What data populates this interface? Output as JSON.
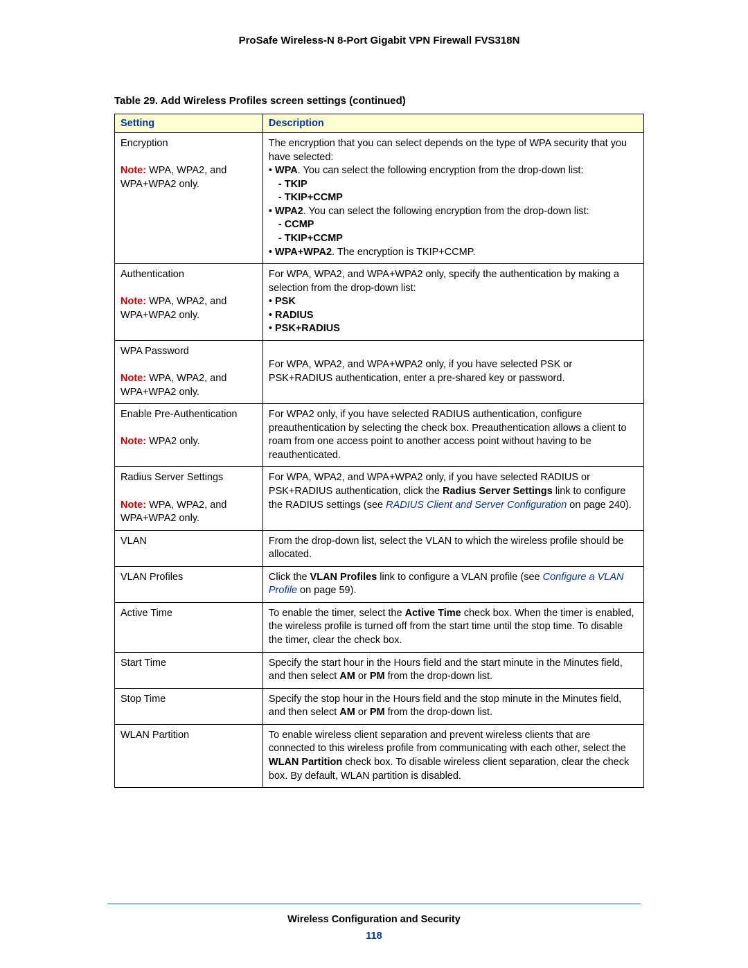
{
  "header": {
    "product_title": "ProSafe Wireless-N 8-Port Gigabit VPN Firewall FVS318N"
  },
  "table": {
    "caption": "Table 29.  Add Wireless Profiles screen settings (continued)",
    "columns": {
      "setting": "Setting",
      "description": "Description"
    },
    "rows": {
      "encryption": {
        "setting_title": "Encryption",
        "note_label": "Note:",
        "note_text": "  WPA, WPA2, and WPA+WPA2 only.",
        "desc_intro": "The encryption that you can select depends on the type of WPA security that you have selected:",
        "bullet1_label": "WPA",
        "bullet1_text": ". You can select the following encryption from the drop-down list:",
        "bullet1a": "- TKIP",
        "bullet1b": "- TKIP+CCMP",
        "bullet2_label": "WPA2",
        "bullet2_text": ". You can select the following encryption from the drop-down list:",
        "bullet2a": "- CCMP",
        "bullet2b": "- TKIP+CCMP",
        "bullet3_label": "WPA+WPA2",
        "bullet3_text": ". The encryption is TKIP+CCMP."
      },
      "authentication": {
        "setting_title": "Authentication",
        "note_label": "Note:",
        "note_text": "  WPA, WPA2, and WPA+WPA2 only.",
        "desc_intro": "For WPA, WPA2, and WPA+WPA2 only, specify the authentication by making a selection from the drop-down list:",
        "b1": "PSK",
        "b2": "RADIUS",
        "b3": "PSK+RADIUS"
      },
      "wpapassword": {
        "setting_title": "WPA Password",
        "note_label": "Note:",
        "note_text": "  WPA, WPA2, and WPA+WPA2 only.",
        "desc": "For WPA, WPA2, and WPA+WPA2 only, if you have selected PSK or PSK+RADIUS authentication, enter a pre-shared key or password."
      },
      "preauth": {
        "setting_title": "Enable Pre-Authentication",
        "note_label": "Note:",
        "note_text": "  WPA2 only.",
        "desc": "For WPA2 only, if you have selected RADIUS authentication, configure preauthentication by selecting the check box. Preauthentication allows a client to roam from one access point to another access point without having to be reauthenticated."
      },
      "radius": {
        "setting_title": "Radius Server Settings",
        "note_label": "Note:",
        "note_text": "  WPA, WPA2, and WPA+WPA2 only.",
        "desc_p1": "For WPA, WPA2, and WPA+WPA2 only, if you have selected RADIUS or PSK+RADIUS authentication, click the ",
        "desc_bold": "Radius Server Settings",
        "desc_p2": " link to configure the RADIUS settings (see ",
        "desc_link": "RADIUS Client and Server Configuration",
        "desc_p3": " on page 240)."
      },
      "vlan": {
        "setting_title": "VLAN",
        "desc": "From the drop-down list, select the VLAN to which the wireless profile should be allocated."
      },
      "vlanprofiles": {
        "setting_title": "VLAN Profiles",
        "desc_p1": "Click the ",
        "desc_bold": "VLAN Profiles",
        "desc_p2": " link to configure a VLAN profile (see ",
        "desc_link": "Configure a VLAN Profile",
        "desc_p3": " on page 59)."
      },
      "activetime": {
        "setting_title": "Active Time",
        "desc_p1": "To enable the timer, select the ",
        "desc_bold": "Active Time",
        "desc_p2": " check box. When the timer is enabled, the wireless profile is turned off from the start time until the stop time. To disable the timer, clear the check box."
      },
      "starttime": {
        "setting_title": "Start Time",
        "desc_p1": "Specify the start hour in the Hours field and the start minute in the Minutes field, and then select ",
        "b1": "AM",
        "mid": " or ",
        "b2": "PM",
        "desc_p2": " from the drop-down list."
      },
      "stoptime": {
        "setting_title": "Stop Time",
        "desc_p1": "Specify the stop hour in the Hours field and the stop minute in the Minutes field, and then select ",
        "b1": "AM",
        "mid": " or ",
        "b2": "PM",
        "desc_p2": " from the drop-down list."
      },
      "wlanpart": {
        "setting_title": "WLAN Partition",
        "desc_p1": "To enable wireless client separation and prevent wireless clients that are connected to this wireless profile from communicating with each other, select the ",
        "desc_bold": "WLAN Partition",
        "desc_p2": " check box. To disable wireless client separation, clear the check box. By default, WLAN partition is disabled."
      }
    }
  },
  "footer": {
    "section_title": "Wireless Configuration and Security",
    "page_number": "118"
  }
}
